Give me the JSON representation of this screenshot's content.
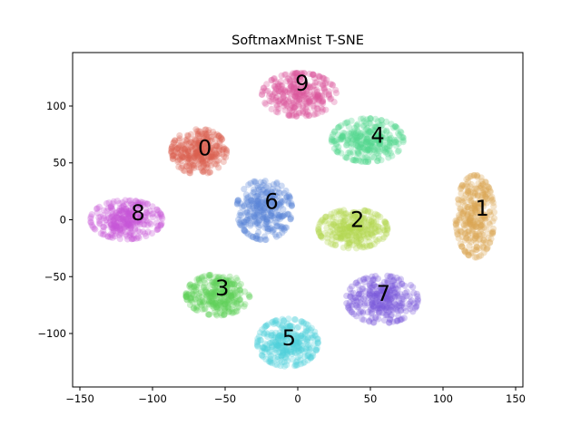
{
  "chart_data": {
    "type": "scatter",
    "title": "SoftmaxMnist T-SNE",
    "xlabel": "",
    "ylabel": "",
    "xlim": [
      -155,
      155
    ],
    "ylim": [
      -147,
      147
    ],
    "xticks": [
      -150,
      -100,
      -50,
      0,
      50,
      100,
      150
    ],
    "yticks": [
      -100,
      -50,
      0,
      50,
      100
    ],
    "grid": false,
    "legend": "none",
    "point_alpha": 0.3,
    "clusters": [
      {
        "label": "0",
        "color": "#d95f4f",
        "center": [
          -68,
          60
        ],
        "radius": [
          20,
          21
        ],
        "points": 300
      },
      {
        "label": "1",
        "color": "#dba552",
        "center": [
          122,
          3
        ],
        "radius": [
          14,
          38
        ],
        "points": 300
      },
      {
        "label": "2",
        "color": "#b4d84f",
        "center": [
          38,
          -8
        ],
        "radius": [
          25,
          18
        ],
        "points": 300
      },
      {
        "label": "3",
        "color": "#61d15a",
        "center": [
          -55,
          -66
        ],
        "radius": [
          23,
          19
        ],
        "points": 300
      },
      {
        "label": "4",
        "color": "#54d68f",
        "center": [
          48,
          70
        ],
        "radius": [
          26,
          20
        ],
        "points": 300
      },
      {
        "label": "5",
        "color": "#50cfd9",
        "center": [
          -7,
          -108
        ],
        "radius": [
          22,
          22
        ],
        "points": 300
      },
      {
        "label": "6",
        "color": "#5a86d8",
        "center": [
          -23,
          9
        ],
        "radius": [
          20,
          28
        ],
        "points": 300
      },
      {
        "label": "7",
        "color": "#7a5ad9",
        "center": [
          58,
          -70
        ],
        "radius": [
          26,
          22
        ],
        "points": 300
      },
      {
        "label": "8",
        "color": "#c656d8",
        "center": [
          -118,
          0
        ],
        "radius": [
          26,
          18
        ],
        "points": 300
      },
      {
        "label": "9",
        "color": "#d9559c",
        "center": [
          1,
          110
        ],
        "radius": [
          27,
          20
        ],
        "points": 300
      }
    ],
    "annotations": [
      {
        "text": "0",
        "x": -64,
        "y": 63
      },
      {
        "text": "1",
        "x": 127,
        "y": 10
      },
      {
        "text": "2",
        "x": 41,
        "y": 0
      },
      {
        "text": "3",
        "x": -52,
        "y": -60
      },
      {
        "text": "4",
        "x": 55,
        "y": 74
      },
      {
        "text": "5",
        "x": -6,
        "y": -104
      },
      {
        "text": "6",
        "x": -18,
        "y": 16
      },
      {
        "text": "7",
        "x": 59,
        "y": -65
      },
      {
        "text": "8",
        "x": -110,
        "y": 6
      },
      {
        "text": "9",
        "x": 3,
        "y": 120
      }
    ]
  }
}
